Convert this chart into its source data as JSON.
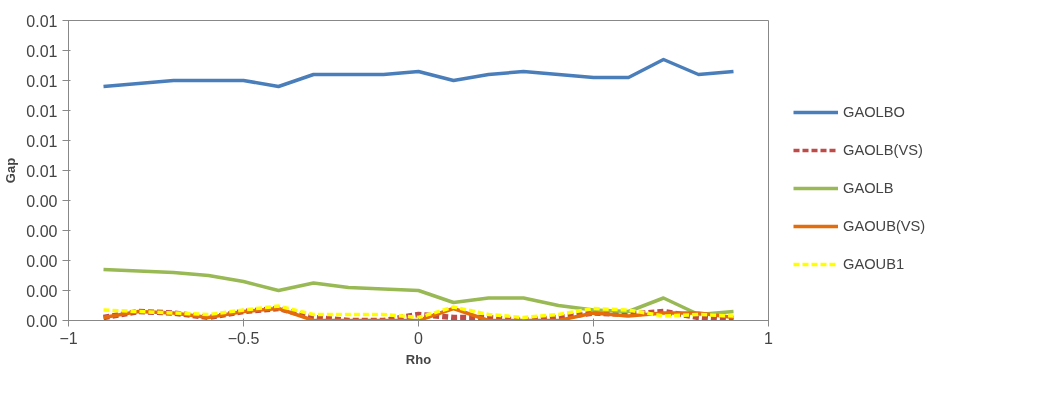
{
  "chart_data": {
    "type": "line",
    "xlabel": "Rho",
    "ylabel": "Gap",
    "x": [
      -0.9,
      -0.8,
      -0.7,
      -0.6,
      -0.5,
      -0.4,
      -0.3,
      -0.2,
      -0.1,
      0,
      0.1,
      0.2,
      0.3,
      0.4,
      0.5,
      0.6,
      0.7,
      0.8,
      0.9
    ],
    "series": [
      {
        "name": "GAOLBO",
        "color": "#4a7ebb",
        "line_style": "solid",
        "values": [
          0.0078,
          0.0079,
          0.008,
          0.008,
          0.008,
          0.0078,
          0.0082,
          0.0082,
          0.0082,
          0.0083,
          0.008,
          0.0082,
          0.0083,
          0.0082,
          0.0081,
          0.0081,
          0.0087,
          0.0082,
          0.0083
        ]
      },
      {
        "name": "GAOLB(VS)",
        "color": "#be4b48",
        "line_style": "dashed",
        "values": [
          0.0001,
          0.0003,
          0.00025,
          0.0001,
          0.0003,
          0.0004,
          0.0001,
          0,
          0,
          0.0002,
          0.0001,
          0.0001,
          0,
          0.0001,
          0.00025,
          0.0002,
          0.0003,
          0.0001,
          0
        ]
      },
      {
        "name": "GAOLB",
        "color": "#98b954",
        "line_style": "solid",
        "values": [
          0.0017,
          0.00165,
          0.0016,
          0.0015,
          0.0013,
          0.001,
          0.00125,
          0.0011,
          0.00105,
          0.001,
          0.0006,
          0.00075,
          0.00075,
          0.0005,
          0.00035,
          0.0003,
          0.00075,
          0.0002,
          0.0003
        ]
      },
      {
        "name": "GAOUB(VS)",
        "color": "#e46c0a",
        "line_style": "solid",
        "values": [
          0.0001,
          0.0003,
          0.00025,
          0.0001,
          0.0003,
          0.0004,
          0,
          0,
          0,
          0,
          0.0004,
          0,
          0,
          0,
          0.00025,
          0.00015,
          0.00025,
          0.00025,
          0.0001
        ]
      },
      {
        "name": "GAOUB1",
        "color": "#ffff00",
        "line_style": "dashed",
        "values": [
          0.00035,
          0.0003,
          0.00025,
          0.0002,
          0.00035,
          0.00048,
          0.0002,
          0.0002,
          0.0002,
          0.0001,
          0.00045,
          0.0002,
          0.0001,
          0.0002,
          0.0004,
          0.00035,
          0.00015,
          0.0002,
          0.00015
        ]
      }
    ],
    "xlim": [
      -1,
      1
    ],
    "xticks": [
      -1,
      -0.5,
      0,
      0.5,
      1
    ],
    "ylim": [
      0,
      0.01
    ],
    "yticks": [
      {
        "value": 0,
        "label": "0.00"
      },
      {
        "value": 0.001,
        "label": "0.00"
      },
      {
        "value": 0.002,
        "label": "0.00"
      },
      {
        "value": 0.003,
        "label": "0.00"
      },
      {
        "value": 0.004,
        "label": "0.00"
      },
      {
        "value": 0.005,
        "label": "0.01"
      },
      {
        "value": 0.006,
        "label": "0.01"
      },
      {
        "value": 0.007,
        "label": "0.01"
      },
      {
        "value": 0.008,
        "label": "0.01"
      },
      {
        "value": 0.009,
        "label": "0.01"
      },
      {
        "value": 0.01,
        "label": "0.01"
      }
    ],
    "grid": false,
    "legend": "right",
    "marker": "none"
  }
}
